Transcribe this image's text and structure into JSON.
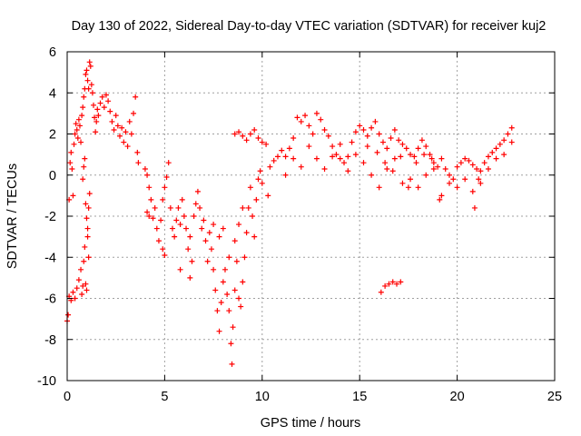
{
  "chart_data": {
    "type": "scatter",
    "title": "Day 130 of 2022, Sidereal Day-to-day VTEC variation (SDTVAR) for receiver kuj2",
    "xlabel": "GPS time / hours",
    "ylabel": "SDTVAR / TECUs",
    "xlim": [
      0,
      25
    ],
    "ylim": [
      -10,
      6
    ],
    "xticks": [
      0,
      5,
      10,
      15,
      20,
      25
    ],
    "yticks": [
      -10,
      -8,
      -6,
      -4,
      -2,
      0,
      2,
      4,
      6
    ],
    "grid": true,
    "marker": "+",
    "color": "#ff0000",
    "series": [
      {
        "name": "SDTVAR",
        "points": [
          [
            0.0,
            -7.1
          ],
          [
            0.05,
            -6.8
          ],
          [
            0.1,
            -1.2
          ],
          [
            0.15,
            0.6
          ],
          [
            0.2,
            1.1
          ],
          [
            0.25,
            0.3
          ],
          [
            0.3,
            -1.0
          ],
          [
            0.35,
            1.5
          ],
          [
            0.4,
            2.0
          ],
          [
            0.45,
            2.5
          ],
          [
            0.5,
            2.2
          ],
          [
            0.55,
            1.8
          ],
          [
            0.6,
            2.7
          ],
          [
            0.65,
            2.4
          ],
          [
            0.7,
            1.6
          ],
          [
            0.75,
            2.9
          ],
          [
            0.8,
            3.3
          ],
          [
            0.85,
            3.8
          ],
          [
            0.9,
            4.2
          ],
          [
            0.95,
            4.9
          ],
          [
            1.0,
            5.1
          ],
          [
            1.05,
            4.6
          ],
          [
            1.1,
            4.2
          ],
          [
            1.15,
            5.5
          ],
          [
            1.2,
            5.3
          ],
          [
            1.25,
            4.4
          ],
          [
            1.3,
            4.0
          ],
          [
            1.35,
            3.4
          ],
          [
            1.4,
            2.8
          ],
          [
            1.45,
            2.1
          ],
          [
            1.5,
            2.6
          ],
          [
            1.55,
            3.2
          ],
          [
            0.1,
            -5.9
          ],
          [
            0.2,
            -6.1
          ],
          [
            0.3,
            -5.7
          ],
          [
            0.4,
            -6.0
          ],
          [
            0.5,
            -5.5
          ],
          [
            0.6,
            -5.1
          ],
          [
            0.7,
            -4.6
          ],
          [
            0.75,
            -5.8
          ],
          [
            0.8,
            -5.4
          ],
          [
            0.85,
            -4.2
          ],
          [
            0.9,
            -3.5
          ],
          [
            0.95,
            -5.3
          ],
          [
            1.0,
            -5.6
          ],
          [
            1.05,
            -2.6
          ],
          [
            1.1,
            -1.6
          ],
          [
            1.15,
            -0.9
          ],
          [
            0.8,
            -0.2
          ],
          [
            0.85,
            0.4
          ],
          [
            0.9,
            0.8
          ],
          [
            0.95,
            -1.4
          ],
          [
            1.0,
            -2.1
          ],
          [
            1.05,
            -3.0
          ],
          [
            1.1,
            -4.0
          ],
          [
            1.6,
            2.9
          ],
          [
            1.7,
            3.5
          ],
          [
            1.8,
            3.8
          ],
          [
            1.9,
            3.3
          ],
          [
            2.0,
            3.9
          ],
          [
            2.1,
            3.6
          ],
          [
            2.2,
            3.1
          ],
          [
            2.3,
            2.6
          ],
          [
            2.4,
            2.2
          ],
          [
            2.5,
            2.9
          ],
          [
            2.6,
            2.4
          ],
          [
            2.7,
            1.9
          ],
          [
            2.8,
            2.3
          ],
          [
            2.9,
            1.6
          ],
          [
            3.0,
            2.1
          ],
          [
            3.1,
            1.4
          ],
          [
            3.2,
            2.6
          ],
          [
            3.3,
            2.0
          ],
          [
            3.4,
            3.0
          ],
          [
            3.5,
            3.8
          ],
          [
            3.6,
            1.1
          ],
          [
            3.65,
            0.6
          ],
          [
            4.0,
            0.3
          ],
          [
            4.1,
            0.0
          ],
          [
            4.2,
            -0.6
          ],
          [
            4.3,
            -1.2
          ],
          [
            4.4,
            -2.1
          ],
          [
            4.5,
            -1.6
          ],
          [
            4.6,
            -2.6
          ],
          [
            4.7,
            -3.2
          ],
          [
            4.8,
            -2.2
          ],
          [
            4.9,
            -1.2
          ],
          [
            5.0,
            -0.6
          ],
          [
            5.1,
            -0.1
          ],
          [
            5.2,
            0.6
          ],
          [
            5.3,
            -1.6
          ],
          [
            5.4,
            -2.6
          ],
          [
            4.9,
            -3.6
          ],
          [
            5.0,
            -3.9
          ],
          [
            4.2,
            -2.0
          ],
          [
            4.1,
            -1.8
          ],
          [
            5.5,
            -3.0
          ],
          [
            5.6,
            -2.2
          ],
          [
            5.7,
            -1.6
          ],
          [
            5.8,
            -2.4
          ],
          [
            5.9,
            -1.2
          ],
          [
            6.0,
            -2.0
          ],
          [
            6.1,
            -2.6
          ],
          [
            6.2,
            -3.6
          ],
          [
            6.3,
            -3.0
          ],
          [
            6.4,
            -4.2
          ],
          [
            6.5,
            -2.0
          ],
          [
            6.6,
            -1.4
          ],
          [
            6.7,
            -0.8
          ],
          [
            6.8,
            -1.6
          ],
          [
            6.9,
            -2.6
          ],
          [
            7.0,
            -2.2
          ],
          [
            7.1,
            -3.2
          ],
          [
            7.2,
            -4.2
          ],
          [
            7.3,
            -2.8
          ],
          [
            7.4,
            -3.6
          ],
          [
            7.5,
            -4.6
          ],
          [
            7.6,
            -5.6
          ],
          [
            7.7,
            -6.6
          ],
          [
            7.8,
            -7.6
          ],
          [
            7.9,
            -6.2
          ],
          [
            8.0,
            -5.2
          ],
          [
            8.1,
            -4.6
          ],
          [
            8.2,
            -5.8
          ],
          [
            8.3,
            -6.6
          ],
          [
            8.4,
            -8.2
          ],
          [
            8.45,
            -9.2
          ],
          [
            8.5,
            -7.4
          ],
          [
            8.6,
            -5.6
          ],
          [
            8.7,
            -4.2
          ],
          [
            8.8,
            -6.0
          ],
          [
            8.9,
            -6.4
          ],
          [
            9.0,
            -5.2
          ],
          [
            9.1,
            -4.0
          ],
          [
            9.2,
            -2.8
          ],
          [
            9.3,
            -1.6
          ],
          [
            9.4,
            -0.6
          ],
          [
            9.5,
            -2.0
          ],
          [
            9.6,
            -3.0
          ],
          [
            9.7,
            -1.2
          ],
          [
            9.8,
            -0.2
          ],
          [
            9.9,
            0.2
          ],
          [
            10.0,
            -0.4
          ],
          [
            7.5,
            -2.4
          ],
          [
            7.8,
            -3.0
          ],
          [
            8.0,
            -2.6
          ],
          [
            8.3,
            -4.0
          ],
          [
            8.6,
            -3.2
          ],
          [
            8.8,
            -2.4
          ],
          [
            9.0,
            -1.6
          ],
          [
            5.8,
            -4.6
          ],
          [
            6.3,
            -5.0
          ],
          [
            8.6,
            2.0
          ],
          [
            8.8,
            2.1
          ],
          [
            9.0,
            1.9
          ],
          [
            9.2,
            1.7
          ],
          [
            9.4,
            2.0
          ],
          [
            9.6,
            2.2
          ],
          [
            9.8,
            1.8
          ],
          [
            10.0,
            1.6
          ],
          [
            10.2,
            1.5
          ],
          [
            10.3,
            -1.0
          ],
          [
            10.4,
            0.4
          ],
          [
            10.6,
            0.7
          ],
          [
            10.8,
            0.9
          ],
          [
            11.0,
            1.2
          ],
          [
            11.2,
            0.9
          ],
          [
            11.4,
            1.3
          ],
          [
            11.6,
            1.8
          ],
          [
            11.8,
            2.8
          ],
          [
            12.0,
            2.6
          ],
          [
            12.2,
            2.9
          ],
          [
            12.4,
            2.4
          ],
          [
            12.6,
            2.0
          ],
          [
            12.8,
            3.0
          ],
          [
            13.0,
            2.7
          ],
          [
            13.2,
            2.2
          ],
          [
            13.4,
            1.9
          ],
          [
            13.6,
            1.4
          ],
          [
            13.8,
            1.0
          ],
          [
            14.0,
            0.8
          ],
          [
            14.2,
            0.6
          ],
          [
            14.4,
            0.9
          ],
          [
            14.6,
            1.6
          ],
          [
            14.8,
            2.1
          ],
          [
            15.0,
            2.4
          ],
          [
            15.2,
            2.2
          ],
          [
            15.4,
            1.9
          ],
          [
            15.6,
            2.3
          ],
          [
            15.8,
            2.6
          ],
          [
            16.0,
            2.0
          ],
          [
            16.2,
            1.6
          ],
          [
            16.4,
            1.3
          ],
          [
            16.6,
            1.8
          ],
          [
            16.8,
            2.2
          ],
          [
            17.0,
            1.7
          ],
          [
            17.2,
            1.5
          ],
          [
            17.4,
            1.3
          ],
          [
            17.6,
            1.0
          ],
          [
            17.8,
            0.9
          ],
          [
            18.0,
            1.3
          ],
          [
            18.2,
            1.7
          ],
          [
            18.4,
            1.4
          ],
          [
            18.6,
            1.0
          ],
          [
            18.8,
            0.6
          ],
          [
            19.0,
            0.4
          ],
          [
            19.2,
            0.8
          ],
          [
            19.4,
            0.3
          ],
          [
            19.6,
            0.0
          ],
          [
            19.8,
            -0.2
          ],
          [
            20.0,
            0.4
          ],
          [
            20.2,
            0.6
          ],
          [
            20.4,
            0.8
          ],
          [
            20.6,
            0.7
          ],
          [
            20.8,
            0.5
          ],
          [
            21.0,
            0.3
          ],
          [
            21.2,
            0.2
          ],
          [
            21.4,
            0.6
          ],
          [
            21.6,
            0.9
          ],
          [
            21.8,
            1.1
          ],
          [
            22.0,
            1.3
          ],
          [
            22.2,
            1.5
          ],
          [
            22.4,
            1.7
          ],
          [
            22.6,
            2.0
          ],
          [
            22.8,
            2.3
          ],
          [
            11.2,
            0.0
          ],
          [
            11.6,
            0.8
          ],
          [
            12.0,
            0.4
          ],
          [
            12.4,
            1.4
          ],
          [
            12.8,
            0.8
          ],
          [
            13.2,
            0.3
          ],
          [
            13.6,
            0.9
          ],
          [
            14.0,
            1.5
          ],
          [
            14.4,
            0.2
          ],
          [
            14.8,
            1.0
          ],
          [
            15.2,
            0.6
          ],
          [
            15.6,
            0.0
          ],
          [
            16.0,
            -0.6
          ],
          [
            16.4,
            0.3
          ],
          [
            16.8,
            0.8
          ],
          [
            17.2,
            -0.4
          ],
          [
            17.6,
            -0.2
          ],
          [
            18.0,
            -0.6
          ],
          [
            18.4,
            0.0
          ],
          [
            18.8,
            0.3
          ],
          [
            19.2,
            -1.0
          ],
          [
            19.6,
            -0.4
          ],
          [
            20.0,
            -0.6
          ],
          [
            20.4,
            -0.2
          ],
          [
            20.8,
            -0.8
          ],
          [
            21.2,
            -0.4
          ],
          [
            21.6,
            0.3
          ],
          [
            22.0,
            0.8
          ],
          [
            22.4,
            1.0
          ],
          [
            22.8,
            1.6
          ],
          [
            15.4,
            1.4
          ],
          [
            15.9,
            1.1
          ],
          [
            16.3,
            0.6
          ],
          [
            16.7,
            0.2
          ],
          [
            17.1,
            0.9
          ],
          [
            17.5,
            -0.6
          ],
          [
            17.9,
            0.6
          ],
          [
            18.3,
            1.0
          ],
          [
            18.7,
            0.8
          ],
          [
            19.1,
            -1.2
          ],
          [
            20.9,
            -1.6
          ],
          [
            21.1,
            -0.2
          ],
          [
            16.1,
            -5.7
          ],
          [
            16.3,
            -5.4
          ],
          [
            16.5,
            -5.3
          ],
          [
            16.7,
            -5.2
          ],
          [
            16.9,
            -5.3
          ],
          [
            17.1,
            -5.2
          ]
        ]
      }
    ]
  }
}
